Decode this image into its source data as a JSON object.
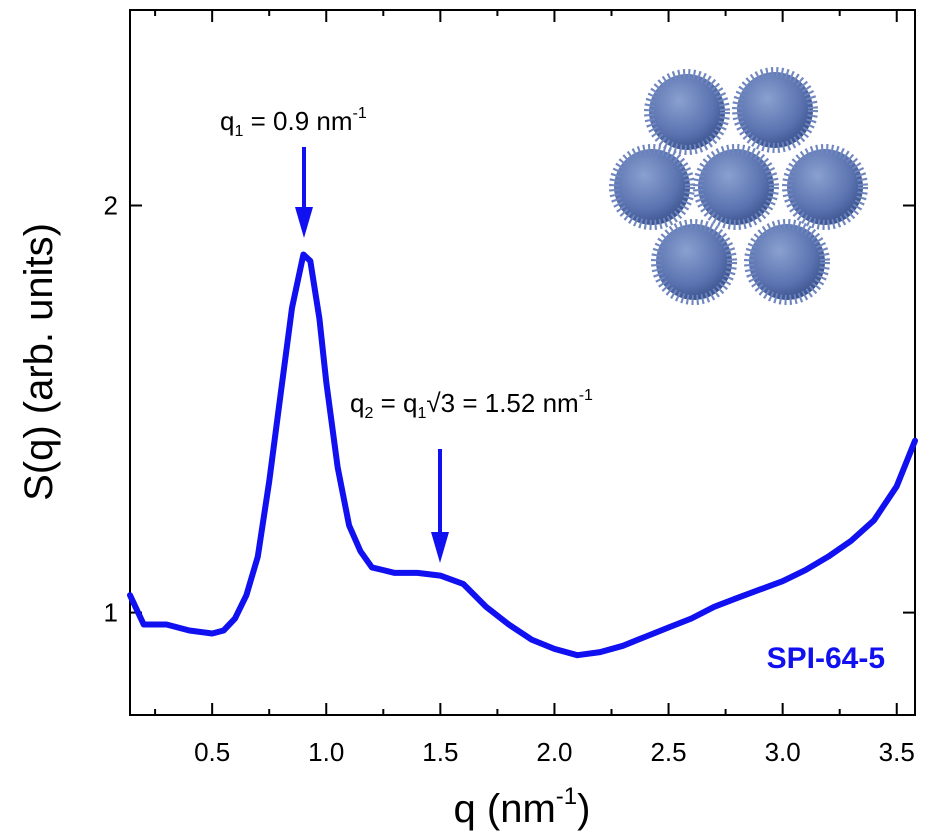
{
  "chart_data": {
    "type": "line",
    "title_annotations": [
      {
        "parts": [
          "q",
          "1",
          " = 0.9 nm",
          "-1"
        ]
      },
      {
        "parts": [
          "q",
          "2",
          " = q",
          "1",
          "√3 =  1.52 nm",
          "-1"
        ]
      }
    ],
    "sample_label": "SPI-64-5",
    "x_label_parts": [
      "q (nm",
      "-1",
      ")"
    ],
    "y_label": "S(q) (arb. units)",
    "x": [
      0.14,
      0.2,
      0.3,
      0.4,
      0.5,
      0.55,
      0.6,
      0.65,
      0.7,
      0.75,
      0.8,
      0.85,
      0.9,
      0.93,
      0.97,
      1.0,
      1.05,
      1.1,
      1.15,
      1.2,
      1.3,
      1.4,
      1.5,
      1.6,
      1.7,
      1.8,
      1.9,
      2.0,
      2.1,
      2.2,
      2.3,
      2.4,
      2.5,
      2.6,
      2.7,
      2.8,
      2.9,
      3.0,
      3.1,
      3.2,
      3.3,
      3.4,
      3.5,
      3.58
    ],
    "series": [
      {
        "color": "#1010f0",
        "values": [
          1.03,
          0.98,
          0.98,
          0.97,
          0.965,
          0.97,
          0.99,
          1.03,
          1.1,
          1.25,
          1.45,
          1.68,
          1.84,
          1.82,
          1.65,
          1.48,
          1.28,
          1.16,
          1.11,
          1.08,
          1.07,
          1.07,
          1.065,
          1.05,
          1.01,
          0.98,
          0.955,
          0.94,
          0.93,
          0.935,
          0.945,
          0.96,
          0.975,
          0.99,
          1.01,
          1.025,
          1.04,
          1.055,
          1.075,
          1.1,
          1.13,
          1.17,
          1.24,
          1.34
        ]
      }
    ],
    "xlim": [
      0.14,
      3.58
    ],
    "xticks": [
      0.5,
      {
        "value": 1,
        "label": "1.0"
      },
      1.5,
      {
        "value": 2,
        "label": "2.0"
      },
      2.5,
      {
        "value": 3,
        "label": "3.0"
      },
      3.5
    ],
    "ylim": [
      0.84,
      2.79
    ],
    "yticks": [
      1,
      2
    ],
    "y_scale": "log",
    "grid": false
  }
}
